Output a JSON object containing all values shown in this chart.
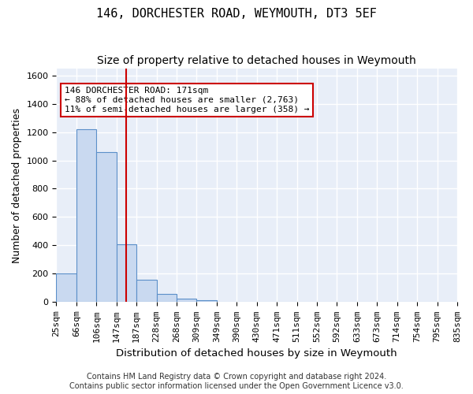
{
  "title": "146, DORCHESTER ROAD, WEYMOUTH, DT3 5EF",
  "subtitle": "Size of property relative to detached houses in Weymouth",
  "xlabel": "Distribution of detached houses by size in Weymouth",
  "ylabel": "Number of detached properties",
  "bar_values": [
    200,
    1220,
    1060,
    410,
    160,
    60,
    25,
    15,
    0,
    0,
    0,
    0,
    0,
    0,
    0,
    0,
    0,
    0,
    0,
    0
  ],
  "bin_labels": [
    "25sqm",
    "66sqm",
    "106sqm",
    "147sqm",
    "187sqm",
    "228sqm",
    "268sqm",
    "309sqm",
    "349sqm",
    "390sqm",
    "430sqm",
    "471sqm",
    "511sqm",
    "552sqm",
    "592sqm",
    "633sqm",
    "673sqm",
    "714sqm",
    "754sqm",
    "795sqm",
    "835sqm"
  ],
  "bar_color": "#c9d9f0",
  "bar_edge_color": "#5b8fc9",
  "vline_x": 3.5,
  "vline_color": "#cc0000",
  "annotation_text": "146 DORCHESTER ROAD: 171sqm\n← 88% of detached houses are smaller (2,763)\n11% of semi-detached houses are larger (358) →",
  "annotation_box_color": "white",
  "annotation_box_edge": "#cc0000",
  "ylim": [
    0,
    1650
  ],
  "yticks": [
    0,
    200,
    400,
    600,
    800,
    1000,
    1200,
    1400,
    1600
  ],
  "footer": "Contains HM Land Registry data © Crown copyright and database right 2024.\nContains public sector information licensed under the Open Government Licence v3.0.",
  "bg_color": "#e8eef8",
  "grid_color": "#ffffff",
  "title_fontsize": 11,
  "subtitle_fontsize": 10,
  "axis_label_fontsize": 9,
  "tick_fontsize": 8,
  "annotation_fontsize": 8,
  "footer_fontsize": 7
}
